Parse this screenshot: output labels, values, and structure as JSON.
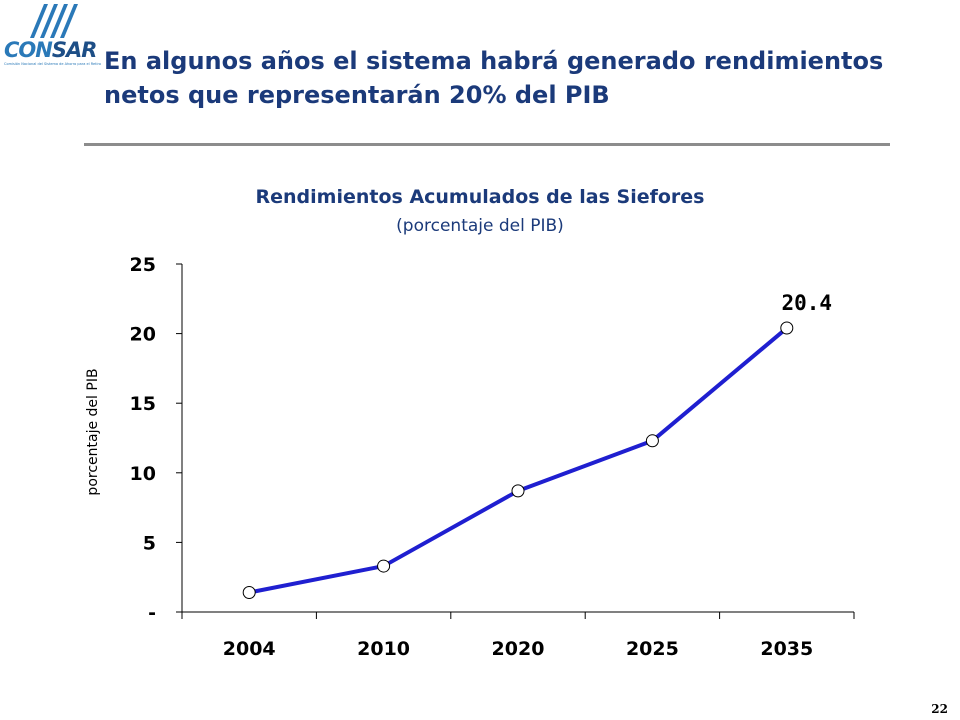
{
  "logo": {
    "word_a": "CON",
    "word_b": "SAR",
    "tagline": "Comisión Nacional del Sistema de Ahorro para el Retiro"
  },
  "slide": {
    "title": "En algunos años el sistema habrá generado rendimientos netos que representarán 20% del PIB",
    "page_number": "22"
  },
  "colors": {
    "title": "#1b3a7a",
    "line": "#1f1fd0",
    "marker_fill": "#ffffff",
    "rule": "#8c8c8c"
  },
  "chart_data": {
    "type": "line",
    "title": "Rendimientos Acumulados de las Siefores",
    "subtitle": "(porcentaje del PIB)",
    "xlabel": "",
    "ylabel": "porcentaje del PIB",
    "categories": [
      "2004",
      "2010",
      "2020",
      "2025",
      "2035"
    ],
    "series": [
      {
        "values": [
          1.4,
          3.3,
          8.7,
          12.3,
          20.4
        ]
      }
    ],
    "ylim": [
      0,
      25
    ],
    "yticks": [
      0,
      5,
      10,
      15,
      20,
      25
    ],
    "ytick_labels": [
      "-",
      "5",
      "10",
      "15",
      "20",
      "25"
    ],
    "data_labels": [
      {
        "index": 4,
        "text": "20.4"
      }
    ],
    "grid": false,
    "legend": "none"
  }
}
